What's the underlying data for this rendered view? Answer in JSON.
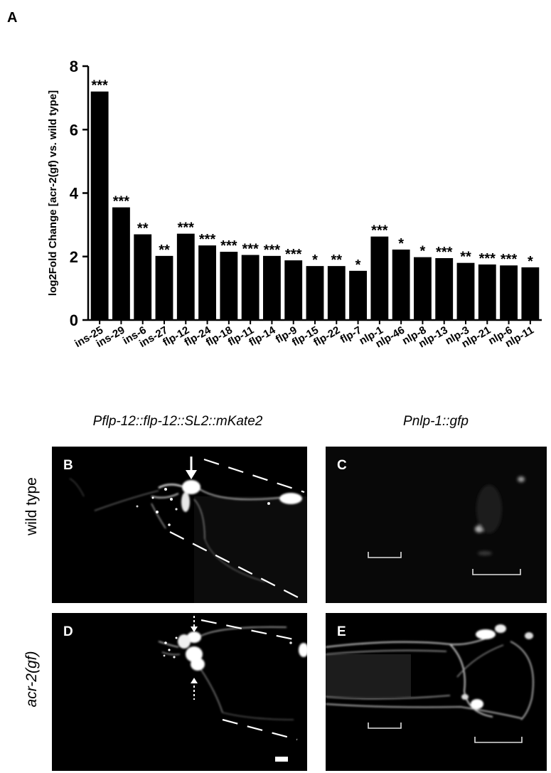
{
  "figure": {
    "panel_a_label": "A",
    "col_titles": {
      "left": "Pflp-12::flp-12::SL2::mKate2",
      "right": "Pnlp-1::gfp"
    },
    "row_labels": {
      "top": "wild type",
      "bottom": "acr-2(gf)"
    },
    "panels": {
      "b": "B",
      "c": "C",
      "d": "D",
      "e": "E"
    }
  },
  "chart_data": {
    "type": "bar",
    "ylabel": "log2Fold Change [acr-2(gf) vs. wild type]",
    "ylim": [
      0,
      8
    ],
    "yticks": [
      0,
      2,
      4,
      6,
      8
    ],
    "bar_color": "#000000",
    "categories": [
      "ins-25",
      "ins-29",
      "ins-6",
      "ins-27",
      "flp-12",
      "flp-24",
      "flp-18",
      "flp-11",
      "flp-14",
      "flp-9",
      "flp-15",
      "flp-22",
      "flp-7",
      "nlp-1",
      "nlp-46",
      "nlp-8",
      "nlp-13",
      "nlp-3",
      "nlp-21",
      "nlp-6",
      "nlp-11"
    ],
    "values": [
      7.2,
      3.55,
      2.7,
      2.02,
      2.72,
      2.35,
      2.15,
      2.05,
      2.02,
      1.88,
      1.7,
      1.7,
      1.55,
      2.63,
      2.22,
      1.98,
      1.95,
      1.8,
      1.75,
      1.72,
      1.66
    ],
    "significance": [
      "***",
      "***",
      "**",
      "**",
      "***",
      "***",
      "***",
      "***",
      "***",
      "***",
      "*",
      "**",
      "*",
      "***",
      "*",
      "*",
      "***",
      "**",
      "***",
      "***",
      "*"
    ]
  }
}
